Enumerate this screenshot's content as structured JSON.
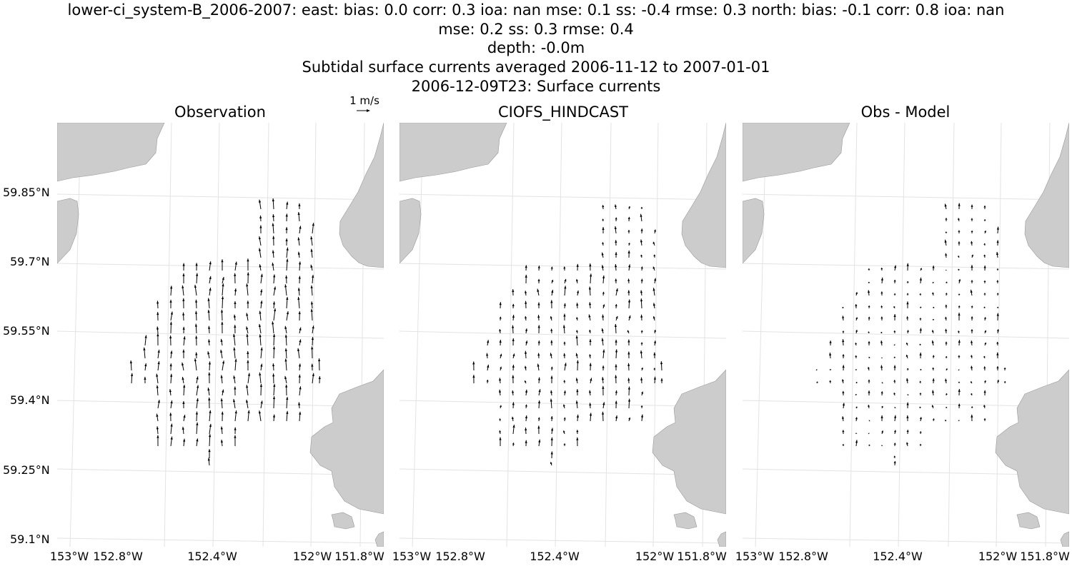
{
  "figure": {
    "title_lines": [
      "lower-ci_system-B_2006-2007: east: bias: 0.0  corr: 0.3  ioa: nan  mse: 0.1  ss: -0.4  rmse: 0.3  north: bias: -0.1  corr: 0.8  ioa: nan",
      "mse: 0.2  ss: 0.3  rmse: 0.4",
      "depth: -0.0m",
      "Subtidal surface currents averaged 2006-11-12 to 2007-01-01",
      "2006-12-09T23: Surface currents"
    ]
  },
  "key": {
    "label": "1 m/s",
    "speed": 1
  },
  "colors": {
    "land": "#cccccc",
    "land_edge": "#999999",
    "grid": "#e3e3e3",
    "arrow": "#000000"
  },
  "axes": {
    "lat_labels": [
      "59.85°N",
      "59.7°N",
      "59.55°N",
      "59.4°N",
      "59.25°N",
      "59.1°N"
    ],
    "lon_labels": [
      "153°W",
      "152.8°W",
      "152.4°W",
      "152°W",
      "151.8°W"
    ]
  },
  "panels": [
    {
      "title": "Observation"
    },
    {
      "title": "CIOFS_HINDCAST"
    },
    {
      "title": "Obs - Model"
    }
  ]
}
